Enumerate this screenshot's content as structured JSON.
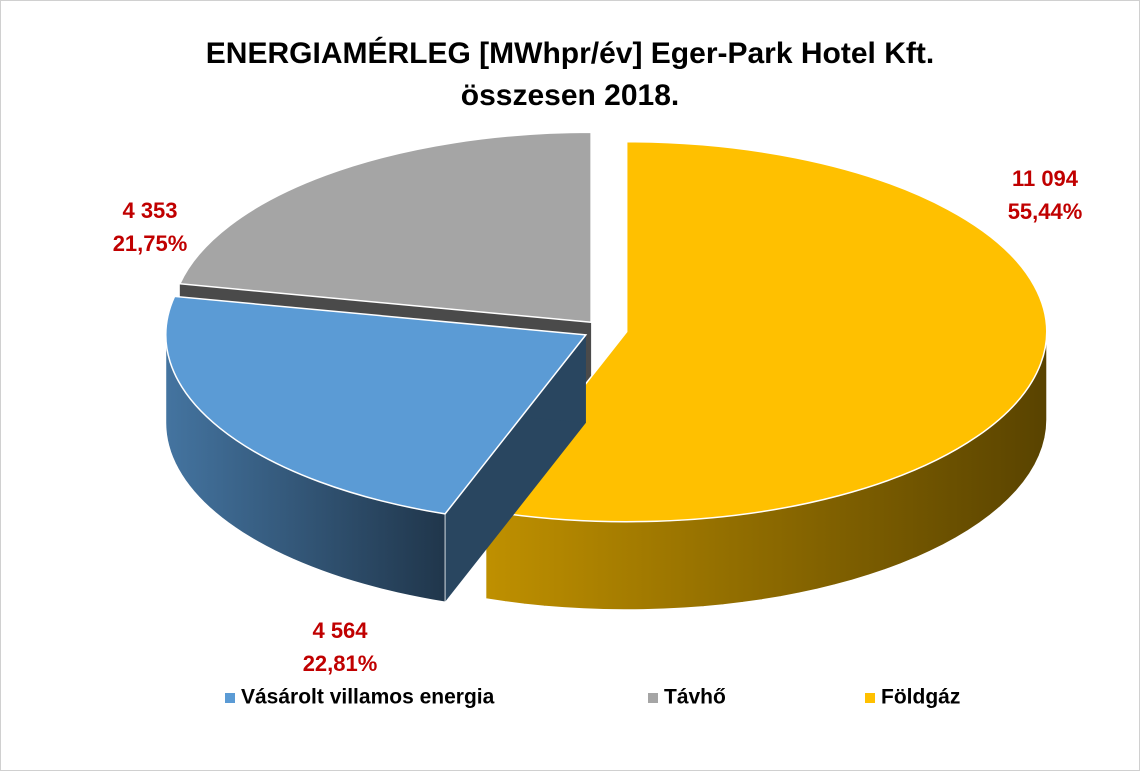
{
  "chart_data": {
    "type": "pie",
    "title": "ENERGIAMÉRLEG [MWhpr/év] Eger-Park Hotel Kft.",
    "subtitle": "összesen 2018.",
    "categories": [
      "Vásárolt villamos energia",
      "Távhő",
      "Földgáz"
    ],
    "values": [
      4564,
      4353,
      11094
    ],
    "value_labels": [
      "4 564",
      "4 353",
      "11 094"
    ],
    "percentages": [
      22.81,
      21.75,
      55.44
    ],
    "percentage_labels": [
      "22,81%",
      "21,75%",
      "55,44%"
    ],
    "colors": [
      "#5b9bd5",
      "#a5a5a5",
      "#ffc000"
    ],
    "legend": "bottom"
  }
}
